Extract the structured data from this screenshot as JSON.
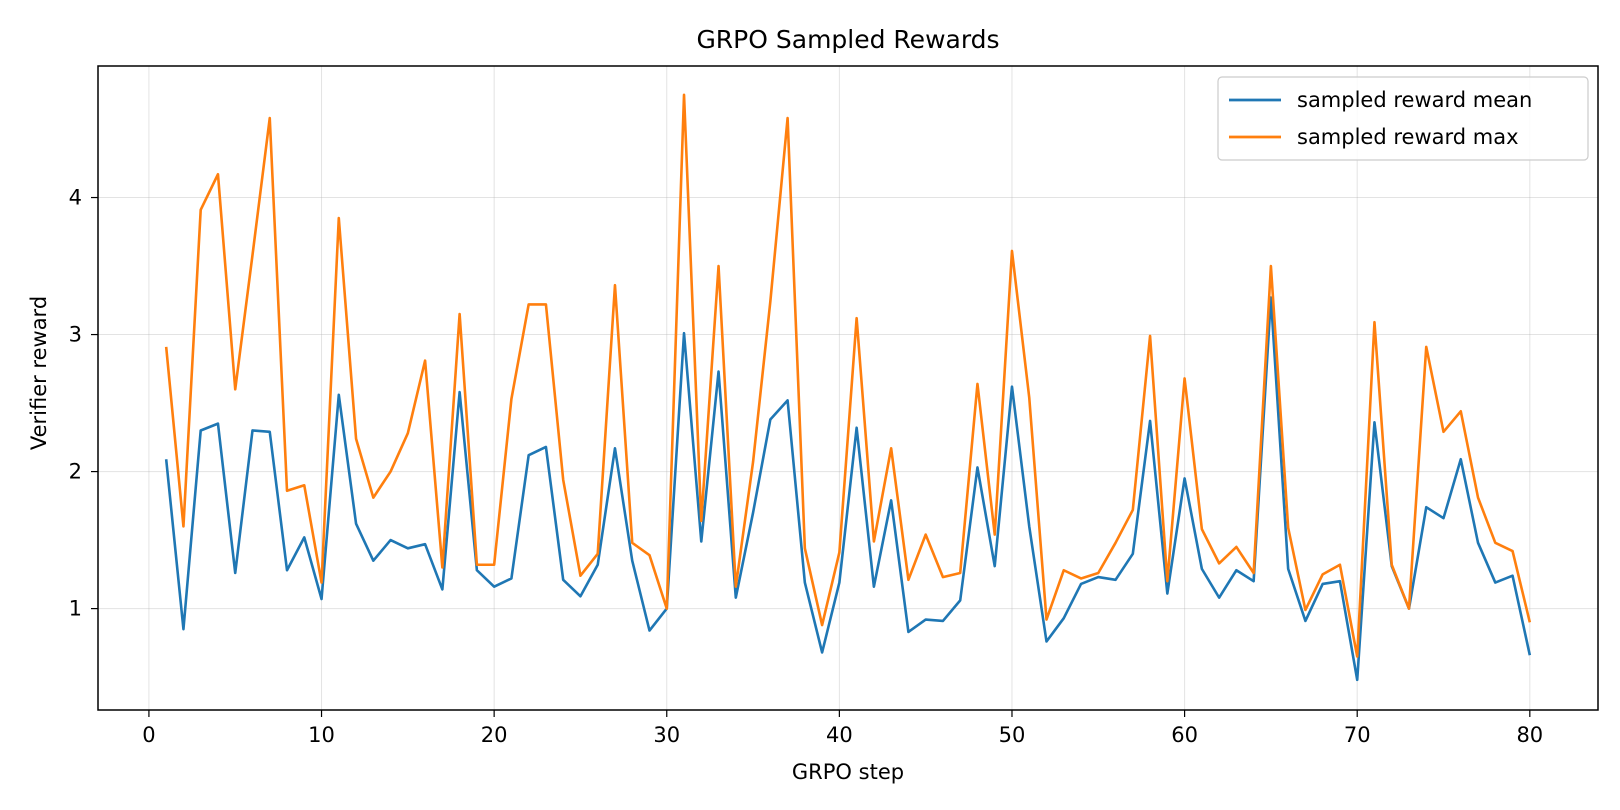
{
  "chart_data": {
    "type": "line",
    "title": "GRPO Sampled Rewards",
    "xlabel": "GRPO step",
    "ylabel": "Verifier reward",
    "xlim": [
      -2.95,
      83.95
    ],
    "ylim": [
      0.26,
      4.96
    ],
    "xticks": [
      0,
      10,
      20,
      30,
      40,
      50,
      60,
      70,
      80
    ],
    "yticks": [
      1,
      2,
      3,
      4
    ],
    "grid": true,
    "legend_position": "top-right",
    "x": [
      1,
      2,
      3,
      4,
      5,
      6,
      7,
      8,
      9,
      10,
      11,
      12,
      13,
      14,
      15,
      16,
      17,
      18,
      19,
      20,
      21,
      22,
      23,
      24,
      25,
      26,
      27,
      28,
      29,
      30,
      31,
      32,
      33,
      34,
      35,
      36,
      37,
      38,
      39,
      40,
      41,
      42,
      43,
      44,
      45,
      46,
      47,
      48,
      49,
      50,
      51,
      52,
      53,
      54,
      55,
      56,
      57,
      58,
      59,
      60,
      61,
      62,
      63,
      64,
      65,
      66,
      67,
      68,
      69,
      70,
      71,
      72,
      73,
      74,
      75,
      76,
      77,
      78,
      79,
      80
    ],
    "series": [
      {
        "name": "sampled reward mean",
        "color": "#1f77b4",
        "values": [
          2.09,
          0.85,
          2.3,
          2.35,
          1.26,
          2.3,
          2.29,
          1.28,
          1.52,
          1.07,
          2.56,
          1.62,
          1.35,
          1.5,
          1.44,
          1.47,
          1.14,
          2.58,
          1.28,
          1.16,
          1.22,
          2.12,
          2.18,
          1.21,
          1.09,
          1.32,
          2.17,
          1.35,
          0.84,
          1.0,
          3.01,
          1.49,
          2.73,
          1.08,
          1.7,
          2.38,
          2.52,
          1.19,
          0.68,
          1.19,
          2.32,
          1.16,
          1.79,
          0.83,
          0.92,
          0.91,
          1.06,
          2.03,
          1.31,
          2.62,
          1.6,
          0.76,
          0.93,
          1.18,
          1.23,
          1.21,
          1.4,
          2.37,
          1.11,
          1.95,
          1.29,
          1.08,
          1.28,
          1.2,
          3.27,
          1.29,
          0.91,
          1.18,
          1.2,
          0.48,
          2.36,
          1.31,
          1.0,
          1.74,
          1.66,
          2.09,
          1.48,
          1.19,
          1.24,
          0.66
        ]
      },
      {
        "name": "sampled reward max",
        "color": "#ff7f0e",
        "values": [
          2.91,
          1.6,
          3.91,
          4.17,
          2.6,
          3.58,
          4.58,
          1.86,
          1.9,
          1.19,
          3.85,
          2.24,
          1.81,
          2.0,
          2.28,
          2.81,
          1.3,
          3.15,
          1.32,
          1.32,
          2.53,
          3.22,
          3.22,
          1.94,
          1.24,
          1.4,
          3.36,
          1.48,
          1.39,
          1.0,
          4.75,
          1.64,
          3.5,
          1.16,
          2.07,
          3.24,
          4.58,
          1.44,
          0.88,
          1.41,
          3.12,
          1.49,
          2.17,
          1.21,
          1.54,
          1.23,
          1.26,
          2.64,
          1.54,
          3.61,
          2.54,
          0.92,
          1.28,
          1.22,
          1.26,
          1.48,
          1.72,
          2.99,
          1.2,
          2.68,
          1.58,
          1.33,
          1.45,
          1.26,
          3.5,
          1.59,
          0.99,
          1.25,
          1.32,
          0.65,
          3.09,
          1.32,
          1.0,
          2.91,
          2.29,
          2.44,
          1.81,
          1.48,
          1.42,
          0.9
        ]
      }
    ]
  }
}
